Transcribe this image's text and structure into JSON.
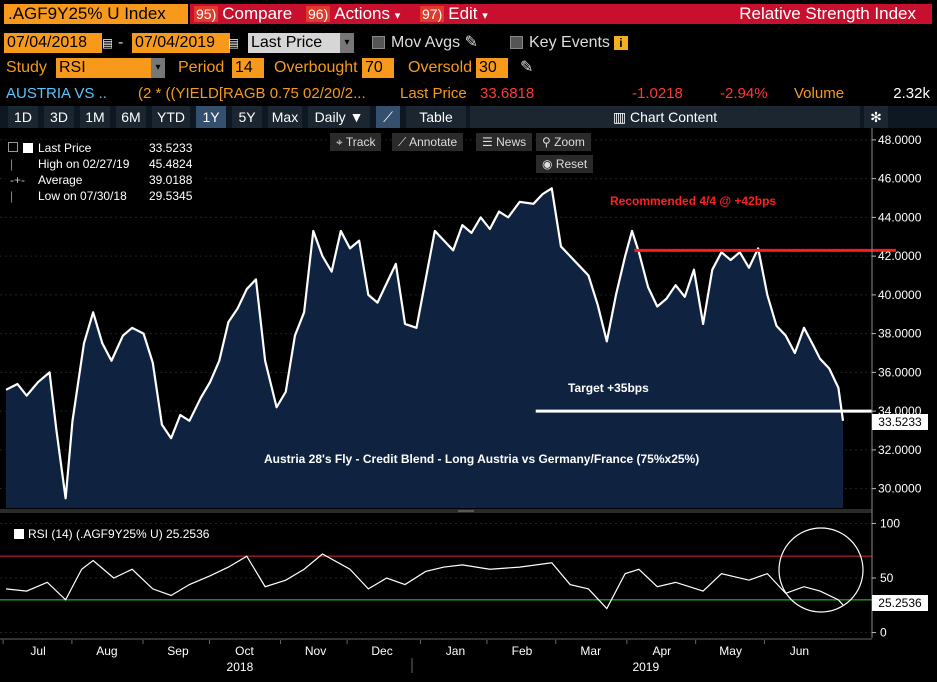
{
  "header": {
    "ticker": ".AGF9Y25% U Index",
    "compare": {
      "num": "95)",
      "label": "Compare"
    },
    "actions": {
      "num": "96)",
      "label": "Actions"
    },
    "edit": {
      "num": "97)",
      "label": "Edit"
    },
    "panel_title": "Relative Strength Index"
  },
  "dates": {
    "from": "07/04/2018",
    "to": "07/04/2019",
    "field": "Last Price",
    "sep": "-"
  },
  "options": {
    "mov_avgs": "Mov Avgs",
    "key_events": "Key Events"
  },
  "study": {
    "label": "Study",
    "value": "RSI",
    "period_label": "Period",
    "period": "14",
    "overbought_label": "Overbought",
    "overbought": "70",
    "oversold_label": "Oversold",
    "oversold": "30"
  },
  "security": {
    "name": "AUSTRIA VS ...",
    "formula": "(2 * ((YIELD[RAGB 0.75 02/20/2...",
    "last_price_label": "Last Price",
    "last_price": "33.6818",
    "change": "-1.0218",
    "change_pct": "-2.94%",
    "volume_label": "Volume",
    "volume": "2.32k"
  },
  "toolbar": {
    "ranges": [
      "1D",
      "3D",
      "1M",
      "6M",
      "YTD",
      "1Y",
      "5Y",
      "Max"
    ],
    "selected": "1Y",
    "freq": "Daily",
    "table": "Table",
    "chart_content": "Chart Content"
  },
  "chart_tools": {
    "track": "Track",
    "annotate": "Annotate",
    "news": "News",
    "zoom": "Zoom",
    "reset": "Reset"
  },
  "legend": {
    "rows": [
      {
        "label": "Last Price",
        "value": "33.5233"
      },
      {
        "label": "High on 02/27/19",
        "value": "45.4824"
      },
      {
        "label": "Average",
        "value": "39.0188"
      },
      {
        "label": "Low on 07/30/18",
        "value": "29.5345"
      }
    ]
  },
  "annotations": {
    "recommended": "Recommended 4/4 @ +42bps",
    "target": "Target +35bps",
    "description": "Austria 28's Fly - Credit Blend - Long Austria vs Germany/France (75%x25%)"
  },
  "price_tag": "33.5233",
  "rsi_tag": "25.2536",
  "rsi_legend": "RSI (14) (.AGF9Y25% U) 25.2536",
  "colors": {
    "line": "#ffffff",
    "area": "#0f2340",
    "recommended": "#ff1a1a",
    "overbought_line": "#d92b2b",
    "oversold_line": "#2bd92b",
    "accent": "#f79a1c"
  },
  "chart_data": [
    {
      "type": "area",
      "series": [
        {
          "name": "Last Price"
        }
      ],
      "y_ticks": [
        "48.0000",
        "46.0000",
        "44.0000",
        "42.0000",
        "40.0000",
        "38.0000",
        "36.0000",
        "34.0000",
        "32.0000",
        "30.0000"
      ],
      "ylim": [
        29.0,
        48.2
      ],
      "x_ticks": [
        "Jul",
        "Aug",
        "Sep",
        "Oct",
        "Nov",
        "Dec",
        "Jan",
        "Feb",
        "Mar",
        "Apr",
        "May",
        "Jun"
      ],
      "x_years": [
        "2018",
        "2019"
      ],
      "points": [
        [
          "2018-07-04",
          35.1
        ],
        [
          "2018-07-09",
          35.4
        ],
        [
          "2018-07-13",
          34.8
        ],
        [
          "2018-07-18",
          35.5
        ],
        [
          "2018-07-23",
          36.0
        ],
        [
          "2018-07-26",
          33.0
        ],
        [
          "2018-07-30",
          29.5
        ],
        [
          "2018-08-02",
          33.5
        ],
        [
          "2018-08-07",
          37.5
        ],
        [
          "2018-08-11",
          39.1
        ],
        [
          "2018-08-15",
          37.5
        ],
        [
          "2018-08-19",
          36.6
        ],
        [
          "2018-08-24",
          37.9
        ],
        [
          "2018-08-28",
          38.3
        ],
        [
          "2018-09-02",
          38.0
        ],
        [
          "2018-09-06",
          36.5
        ],
        [
          "2018-09-10",
          33.3
        ],
        [
          "2018-09-14",
          32.6
        ],
        [
          "2018-09-18",
          33.8
        ],
        [
          "2018-09-22",
          33.5
        ],
        [
          "2018-09-27",
          34.7
        ],
        [
          "2018-10-01",
          35.5
        ],
        [
          "2018-10-05",
          36.6
        ],
        [
          "2018-10-09",
          38.6
        ],
        [
          "2018-10-13",
          39.3
        ],
        [
          "2018-10-17",
          40.3
        ],
        [
          "2018-10-21",
          40.8
        ],
        [
          "2018-10-25",
          36.6
        ],
        [
          "2018-10-30",
          34.2
        ],
        [
          "2018-11-03",
          35.0
        ],
        [
          "2018-11-07",
          37.9
        ],
        [
          "2018-11-11",
          39.1
        ],
        [
          "2018-11-15",
          43.3
        ],
        [
          "2018-11-19",
          42.0
        ],
        [
          "2018-11-23",
          41.2
        ],
        [
          "2018-11-27",
          43.3
        ],
        [
          "2018-12-01",
          42.4
        ],
        [
          "2018-12-05",
          42.8
        ],
        [
          "2018-12-09",
          40.0
        ],
        [
          "2018-12-13",
          39.6
        ],
        [
          "2018-12-17",
          40.6
        ],
        [
          "2018-12-21",
          41.6
        ],
        [
          "2018-12-25",
          38.5
        ],
        [
          "2018-12-30",
          38.3
        ],
        [
          "2019-01-03",
          40.8
        ],
        [
          "2019-01-07",
          43.3
        ],
        [
          "2019-01-11",
          42.8
        ],
        [
          "2019-01-15",
          42.3
        ],
        [
          "2019-01-19",
          43.6
        ],
        [
          "2019-01-23",
          43.2
        ],
        [
          "2019-01-27",
          44.0
        ],
        [
          "2019-01-31",
          43.4
        ],
        [
          "2019-02-04",
          44.3
        ],
        [
          "2019-02-08",
          44.0
        ],
        [
          "2019-02-13",
          44.8
        ],
        [
          "2019-02-19",
          44.7
        ],
        [
          "2019-02-23",
          45.2
        ],
        [
          "2019-02-27",
          45.5
        ],
        [
          "2019-03-03",
          42.5
        ],
        [
          "2019-03-07",
          42.0
        ],
        [
          "2019-03-11",
          41.5
        ],
        [
          "2019-03-15",
          41.0
        ],
        [
          "2019-03-19",
          39.5
        ],
        [
          "2019-03-23",
          37.6
        ],
        [
          "2019-03-27",
          40.0
        ],
        [
          "2019-03-31",
          42.0
        ],
        [
          "2019-04-03",
          43.3
        ],
        [
          "2019-04-06",
          42.2
        ],
        [
          "2019-04-10",
          40.4
        ],
        [
          "2019-04-14",
          39.4
        ],
        [
          "2019-04-18",
          39.8
        ],
        [
          "2019-04-22",
          40.5
        ],
        [
          "2019-04-26",
          39.9
        ],
        [
          "2019-04-30",
          41.3
        ],
        [
          "2019-05-04",
          38.5
        ],
        [
          "2019-05-08",
          41.3
        ],
        [
          "2019-05-12",
          42.2
        ],
        [
          "2019-05-16",
          41.8
        ],
        [
          "2019-05-20",
          42.2
        ],
        [
          "2019-05-24",
          41.4
        ],
        [
          "2019-05-28",
          42.4
        ],
        [
          "2019-06-01",
          40.0
        ],
        [
          "2019-06-05",
          38.4
        ],
        [
          "2019-06-09",
          37.9
        ],
        [
          "2019-06-13",
          37.0
        ],
        [
          "2019-06-17",
          38.3
        ],
        [
          "2019-06-21",
          37.4
        ],
        [
          "2019-06-24",
          36.7
        ],
        [
          "2019-06-28",
          36.2
        ],
        [
          "2019-07-02",
          35.2
        ],
        [
          "2019-07-04",
          33.5
        ]
      ],
      "annotations": [
        {
          "text": "Recommended 4/4 @ +42bps",
          "y": 42.3,
          "x_from": "2019-04-04",
          "x_to": "2019-07-04"
        },
        {
          "text": "Target +35bps",
          "y": 34.0,
          "x_from": "2019-02-20",
          "x_to": "2019-07-04"
        }
      ]
    },
    {
      "type": "line",
      "series": [
        {
          "name": "RSI (14) (.AGF9Y25% U)"
        }
      ],
      "y_ticks": [
        "100",
        "50",
        "0"
      ],
      "ylim": [
        -5,
        105
      ],
      "overbought": 70,
      "oversold": 30,
      "last": 25.2536,
      "points": [
        [
          "2018-07-04",
          40
        ],
        [
          "2018-07-13",
          38
        ],
        [
          "2018-07-22",
          46
        ],
        [
          "2018-07-30",
          30
        ],
        [
          "2018-08-06",
          58
        ],
        [
          "2018-08-11",
          66
        ],
        [
          "2018-08-20",
          50
        ],
        [
          "2018-08-28",
          58
        ],
        [
          "2018-09-06",
          40
        ],
        [
          "2018-09-14",
          34
        ],
        [
          "2018-09-22",
          44
        ],
        [
          "2018-10-01",
          52
        ],
        [
          "2018-10-09",
          60
        ],
        [
          "2018-10-17",
          70
        ],
        [
          "2018-10-25",
          42
        ],
        [
          "2018-11-03",
          48
        ],
        [
          "2018-11-11",
          58
        ],
        [
          "2018-11-19",
          72
        ],
        [
          "2018-12-01",
          58
        ],
        [
          "2018-12-09",
          40
        ],
        [
          "2018-12-17",
          50
        ],
        [
          "2018-12-25",
          44
        ],
        [
          "2019-01-03",
          56
        ],
        [
          "2019-01-11",
          60
        ],
        [
          "2019-01-19",
          62
        ],
        [
          "2019-01-31",
          58
        ],
        [
          "2019-02-13",
          60
        ],
        [
          "2019-02-27",
          64
        ],
        [
          "2019-03-07",
          44
        ],
        [
          "2019-03-15",
          40
        ],
        [
          "2019-03-23",
          22
        ],
        [
          "2019-03-31",
          54
        ],
        [
          "2019-04-06",
          58
        ],
        [
          "2019-04-14",
          42
        ],
        [
          "2019-04-22",
          46
        ],
        [
          "2019-05-04",
          38
        ],
        [
          "2019-05-12",
          54
        ],
        [
          "2019-05-24",
          48
        ],
        [
          "2019-06-01",
          54
        ],
        [
          "2019-06-09",
          36
        ],
        [
          "2019-06-17",
          42
        ],
        [
          "2019-06-24",
          38
        ],
        [
          "2019-07-02",
          30
        ],
        [
          "2019-07-04",
          25.3
        ]
      ]
    }
  ]
}
